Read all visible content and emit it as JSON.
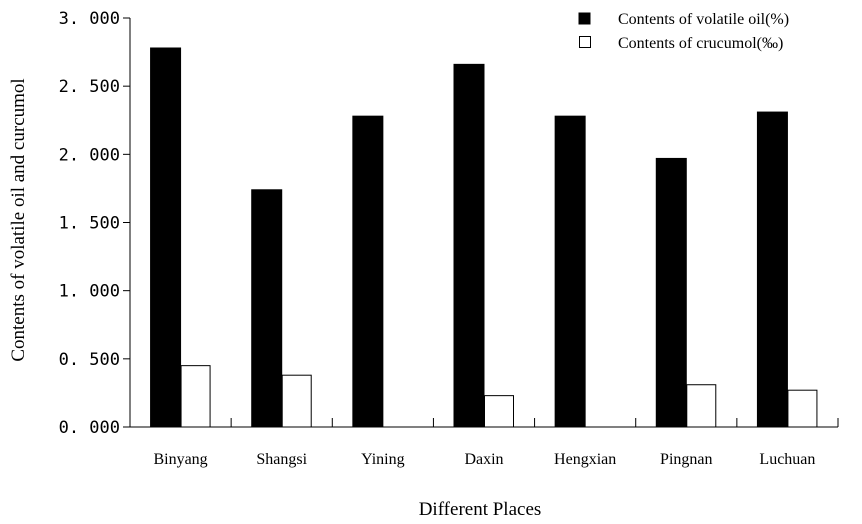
{
  "chart_data": {
    "type": "bar",
    "title": "",
    "xlabel": "Different Places",
    "ylabel": "Contents of volatile oil and curcumol",
    "categories": [
      "Binyang",
      "Shangsi",
      "Yining",
      "Daxin",
      "Hengxian",
      "Pingnan",
      "Luchuan"
    ],
    "series": [
      {
        "name": "Contents of volatile oil(%)",
        "color": "#000000",
        "values": [
          2.78,
          1.74,
          2.28,
          2.66,
          2.28,
          1.97,
          2.31
        ]
      },
      {
        "name": "Contents of crucumol(‰)",
        "color": "#ffffff",
        "values": [
          0.45,
          0.38,
          null,
          0.23,
          null,
          0.31,
          0.27
        ]
      }
    ],
    "ylim": [
      0,
      3
    ],
    "yticks": [
      "0. 000",
      "0. 500",
      "1. 000",
      "1. 500",
      "2. 000",
      "2. 500",
      "3. 000"
    ],
    "grid": false,
    "legend": "top-right"
  }
}
